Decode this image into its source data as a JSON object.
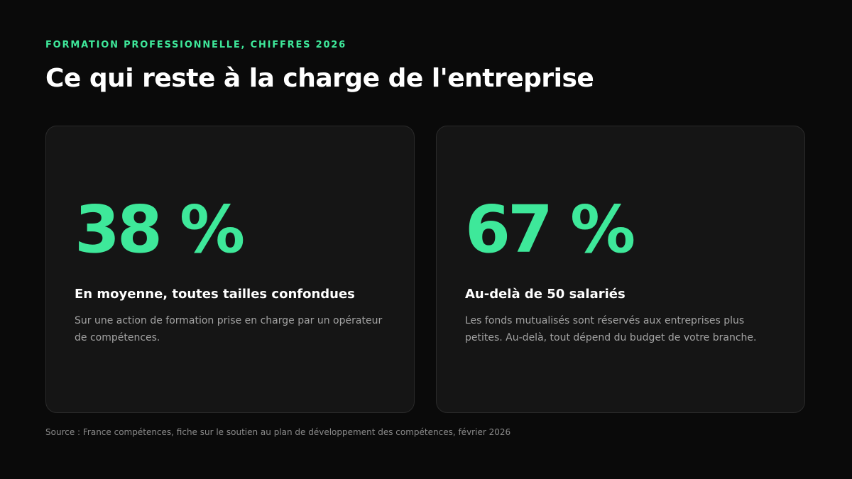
{
  "header": {
    "eyebrow": "FORMATION PROFESSIONNELLE, CHIFFRES 2026",
    "title": "Ce qui reste à la charge de l'entreprise"
  },
  "cards": [
    {
      "value": "38 %",
      "heading": "En moyenne, toutes tailles confondues",
      "body": "Sur une action de formation prise en charge par un opérateur de compétences."
    },
    {
      "value": "67 %",
      "heading": "Au-delà de 50 salariés",
      "body": "Les fonds mutualisés sont réservés aux entreprises plus petites. Au-delà, tout dépend du budget de votre branche."
    }
  ],
  "footer": {
    "source": "Source : France compétences, fiche sur le soutien au plan de développement des compétences, février 2026"
  },
  "colors": {
    "background": "#0a0a0a",
    "card": "#151515",
    "accent": "#3ee89a",
    "text": "#ffffff",
    "muted": "#a3a3a3"
  }
}
